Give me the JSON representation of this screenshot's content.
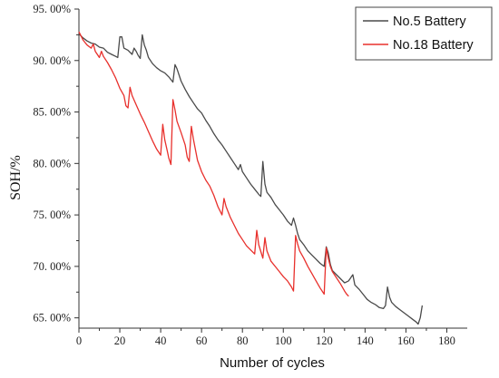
{
  "chart_data": {
    "type": "line",
    "xlabel": "Number of cycles",
    "ylabel": "SOH/%",
    "xlim": [
      0,
      190
    ],
    "ylim": [
      64.0,
      95.0
    ],
    "x_ticks": [
      0,
      20,
      40,
      60,
      80,
      100,
      120,
      140,
      160,
      180
    ],
    "x_tick_labels": [
      "0",
      "20",
      "40",
      "60",
      "80",
      "100",
      "120",
      "140",
      "160",
      "180"
    ],
    "y_ticks": [
      65,
      70,
      75,
      80,
      85,
      90,
      95
    ],
    "y_tick_labels": [
      "65. 00%",
      "70. 00%",
      "75. 00%",
      "80. 00%",
      "85. 00%",
      "90. 00%",
      "95. 00%"
    ],
    "grid": false,
    "legend_position": "top-right",
    "series": [
      {
        "name": "No.5 Battery",
        "color": "#4a4a4a",
        "points": [
          [
            0,
            92.6
          ],
          [
            2,
            92.2
          ],
          [
            4,
            91.9
          ],
          [
            6,
            91.7
          ],
          [
            8,
            91.6
          ],
          [
            10,
            91.3
          ],
          [
            12,
            91.2
          ],
          [
            14,
            90.8
          ],
          [
            16,
            90.6
          ],
          [
            18,
            90.4
          ],
          [
            19,
            90.3
          ],
          [
            20,
            92.3
          ],
          [
            21,
            92.3
          ],
          [
            22,
            91.2
          ],
          [
            24,
            91.0
          ],
          [
            26,
            90.6
          ],
          [
            27,
            91.2
          ],
          [
            28,
            90.9
          ],
          [
            29,
            90.5
          ],
          [
            30,
            90.2
          ],
          [
            31,
            92.5
          ],
          [
            32,
            91.5
          ],
          [
            33,
            91.0
          ],
          [
            34,
            90.3
          ],
          [
            36,
            89.7
          ],
          [
            38,
            89.3
          ],
          [
            40,
            89.0
          ],
          [
            42,
            88.8
          ],
          [
            44,
            88.4
          ],
          [
            46,
            87.9
          ],
          [
            47,
            89.6
          ],
          [
            48,
            89.2
          ],
          [
            50,
            88.0
          ],
          [
            52,
            87.2
          ],
          [
            54,
            86.5
          ],
          [
            56,
            85.9
          ],
          [
            58,
            85.3
          ],
          [
            60,
            84.9
          ],
          [
            62,
            84.2
          ],
          [
            64,
            83.6
          ],
          [
            66,
            82.9
          ],
          [
            68,
            82.3
          ],
          [
            70,
            81.8
          ],
          [
            72,
            81.2
          ],
          [
            74,
            80.6
          ],
          [
            76,
            80.0
          ],
          [
            78,
            79.4
          ],
          [
            79,
            79.9
          ],
          [
            80,
            79.2
          ],
          [
            82,
            78.6
          ],
          [
            84,
            78.0
          ],
          [
            86,
            77.5
          ],
          [
            88,
            77.0
          ],
          [
            89,
            76.8
          ],
          [
            90,
            80.2
          ],
          [
            91,
            78.0
          ],
          [
            92,
            77.2
          ],
          [
            94,
            76.7
          ],
          [
            96,
            76.0
          ],
          [
            98,
            75.5
          ],
          [
            100,
            75.0
          ],
          [
            102,
            74.4
          ],
          [
            103,
            74.2
          ],
          [
            104,
            74.0
          ],
          [
            105,
            74.7
          ],
          [
            106,
            74.0
          ],
          [
            107,
            73.2
          ],
          [
            108,
            72.6
          ],
          [
            110,
            72.1
          ],
          [
            112,
            71.5
          ],
          [
            114,
            71.1
          ],
          [
            116,
            70.7
          ],
          [
            118,
            70.3
          ],
          [
            120,
            70.0
          ],
          [
            121,
            71.9
          ],
          [
            122,
            71.3
          ],
          [
            123,
            70.2
          ],
          [
            124,
            69.6
          ],
          [
            126,
            69.2
          ],
          [
            128,
            68.8
          ],
          [
            130,
            68.4
          ],
          [
            131,
            68.5
          ],
          [
            132,
            68.6
          ],
          [
            134,
            69.2
          ],
          [
            135,
            68.2
          ],
          [
            137,
            67.8
          ],
          [
            139,
            67.3
          ],
          [
            141,
            66.8
          ],
          [
            143,
            66.5
          ],
          [
            145,
            66.3
          ],
          [
            147,
            66.0
          ],
          [
            149,
            65.9
          ],
          [
            150,
            66.2
          ],
          [
            151,
            68.0
          ],
          [
            152,
            67.0
          ],
          [
            153,
            66.5
          ],
          [
            155,
            66.1
          ],
          [
            157,
            65.8
          ],
          [
            159,
            65.5
          ],
          [
            161,
            65.2
          ],
          [
            163,
            64.9
          ],
          [
            165,
            64.6
          ],
          [
            166,
            64.4
          ],
          [
            167,
            65.0
          ],
          [
            168,
            66.2
          ]
        ]
      },
      {
        "name": "No.18 Battery",
        "color": "#e8302c",
        "points": [
          [
            0,
            92.8
          ],
          [
            2,
            92.0
          ],
          [
            4,
            91.5
          ],
          [
            6,
            91.2
          ],
          [
            7,
            91.6
          ],
          [
            8,
            90.9
          ],
          [
            10,
            90.3
          ],
          [
            11,
            90.9
          ],
          [
            12,
            90.4
          ],
          [
            14,
            89.8
          ],
          [
            16,
            89.1
          ],
          [
            18,
            88.3
          ],
          [
            20,
            87.3
          ],
          [
            22,
            86.6
          ],
          [
            23,
            85.6
          ],
          [
            24,
            85.4
          ],
          [
            25,
            87.4
          ],
          [
            26,
            86.6
          ],
          [
            28,
            85.7
          ],
          [
            30,
            84.8
          ],
          [
            32,
            84.0
          ],
          [
            34,
            83.1
          ],
          [
            36,
            82.2
          ],
          [
            38,
            81.4
          ],
          [
            40,
            80.8
          ],
          [
            41,
            83.8
          ],
          [
            42,
            82.3
          ],
          [
            43,
            81.4
          ],
          [
            44,
            80.5
          ],
          [
            45,
            79.9
          ],
          [
            46,
            86.2
          ],
          [
            47,
            85.2
          ],
          [
            48,
            84.1
          ],
          [
            50,
            83.0
          ],
          [
            52,
            81.8
          ],
          [
            53,
            80.6
          ],
          [
            54,
            80.2
          ],
          [
            55,
            83.6
          ],
          [
            56,
            82.4
          ],
          [
            58,
            80.3
          ],
          [
            60,
            79.2
          ],
          [
            62,
            78.4
          ],
          [
            64,
            77.8
          ],
          [
            66,
            76.9
          ],
          [
            68,
            75.8
          ],
          [
            70,
            75.0
          ],
          [
            71,
            76.6
          ],
          [
            72,
            75.8
          ],
          [
            74,
            74.8
          ],
          [
            76,
            74.0
          ],
          [
            78,
            73.2
          ],
          [
            80,
            72.6
          ],
          [
            82,
            72.0
          ],
          [
            84,
            71.6
          ],
          [
            86,
            71.2
          ],
          [
            87,
            73.5
          ],
          [
            88,
            72.1
          ],
          [
            90,
            70.8
          ],
          [
            91,
            72.8
          ],
          [
            92,
            71.5
          ],
          [
            94,
            70.5
          ],
          [
            96,
            70.0
          ],
          [
            98,
            69.5
          ],
          [
            100,
            69.0
          ],
          [
            102,
            68.6
          ],
          [
            104,
            68.0
          ],
          [
            105,
            67.6
          ],
          [
            106,
            73.0
          ],
          [
            107,
            72.2
          ],
          [
            108,
            71.5
          ],
          [
            110,
            70.8
          ],
          [
            112,
            70.0
          ],
          [
            114,
            69.3
          ],
          [
            116,
            68.6
          ],
          [
            118,
            67.9
          ],
          [
            120,
            67.3
          ],
          [
            121,
            71.8
          ],
          [
            122,
            70.8
          ],
          [
            123,
            70.0
          ],
          [
            124,
            69.5
          ],
          [
            126,
            68.9
          ],
          [
            128,
            68.3
          ],
          [
            130,
            67.6
          ],
          [
            131,
            67.3
          ],
          [
            132,
            67.1
          ]
        ]
      }
    ]
  }
}
